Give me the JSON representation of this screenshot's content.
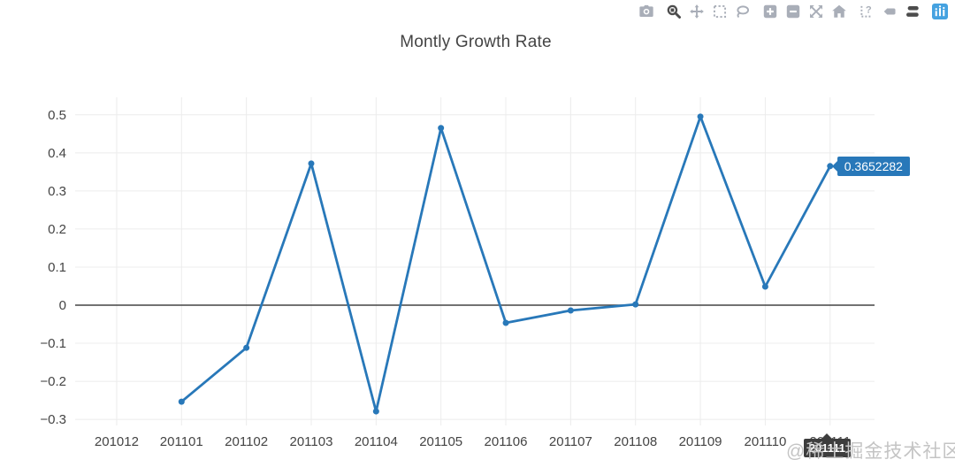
{
  "window": {
    "background": "#ffffff"
  },
  "modebar": {
    "colors": {
      "inactive": "#a9aeb8",
      "active": "#4c4c4c",
      "logo": "#45a2e0"
    },
    "buttons": [
      {
        "name": "download-png",
        "icon": "camera-icon",
        "state": "inactive"
      },
      {
        "name": "zoom",
        "icon": "magnifier-icon",
        "state": "active"
      },
      {
        "name": "pan",
        "icon": "move-arrows-icon",
        "state": "inactive"
      },
      {
        "name": "box-select",
        "icon": "dashed-box-icon",
        "state": "inactive"
      },
      {
        "name": "lasso-select",
        "icon": "lasso-icon",
        "state": "inactive"
      },
      {
        "name": "zoom-in",
        "icon": "plus-square-icon",
        "state": "inactive"
      },
      {
        "name": "zoom-out",
        "icon": "minus-square-icon",
        "state": "inactive"
      },
      {
        "name": "autoscale",
        "icon": "expand-arrows-icon",
        "state": "inactive"
      },
      {
        "name": "reset-axes",
        "icon": "home-icon",
        "state": "inactive"
      },
      {
        "name": "toggle-spikelines",
        "icon": "spikelines-question-icon",
        "state": "inactive"
      },
      {
        "name": "hover-closest",
        "icon": "hover-tag-icon",
        "state": "inactive"
      },
      {
        "name": "hover-compare",
        "icon": "double-hover-tags-icon",
        "state": "active"
      },
      {
        "name": "plotly-logo",
        "icon": "plotly-logo-icon",
        "state": "logo"
      }
    ]
  },
  "chart_data": {
    "type": "line",
    "title": "Montly Growth Rate",
    "categories": [
      "201012",
      "201101",
      "201102",
      "201103",
      "201104",
      "201105",
      "201106",
      "201107",
      "201108",
      "201109",
      "201110",
      "201111"
    ],
    "values": [
      null,
      -0.2535,
      -0.112,
      0.372,
      -0.279,
      0.4652,
      -0.0465,
      -0.014,
      0.002,
      0.4953,
      0.0488,
      0.3652282
    ],
    "y_ticks": [
      0.5,
      0.4,
      0.3,
      0.2,
      0.1,
      0,
      -0.1,
      -0.2,
      -0.3
    ],
    "ylim": [
      -0.316,
      0.546
    ],
    "x_padding": [
      0.64,
      0.685
    ],
    "grid": true,
    "zeroline": true,
    "legend": "none",
    "line_color": "#2878b9",
    "marker_size": 7,
    "grid_color": "#ececec",
    "zeroline_color": "#444444",
    "tick_color": "#444444",
    "xlabel": "",
    "ylabel": ""
  },
  "hover_label": {
    "text": "0.3652282",
    "category": "201111",
    "bg": "#2878b9",
    "text_color": "#ffffff"
  },
  "axis_hover_label": {
    "text": "201111",
    "bg": "#3d3d3d",
    "text_color": "#ffffff"
  },
  "watermark": {
    "text": "@稀土掘金技术社区",
    "color": "#c4c4c4"
  }
}
